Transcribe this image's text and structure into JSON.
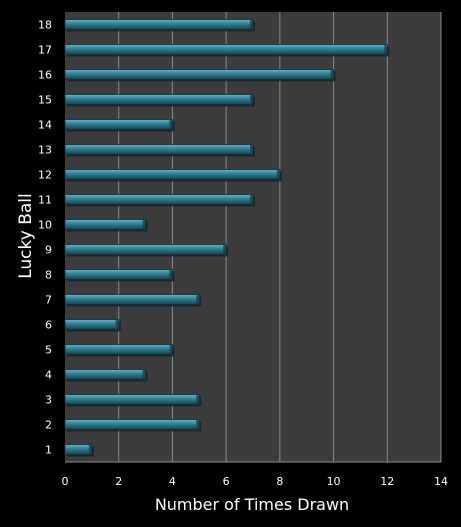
{
  "chart_data": {
    "type": "bar",
    "orientation": "horizontal",
    "title": "",
    "xlabel": "Number of Times Drawn",
    "ylabel": "Lucky Ball",
    "categories": [
      "1",
      "2",
      "3",
      "4",
      "5",
      "6",
      "7",
      "8",
      "9",
      "10",
      "11",
      "12",
      "13",
      "14",
      "15",
      "16",
      "17",
      "18"
    ],
    "values": [
      1,
      5,
      5,
      3,
      4,
      2,
      5,
      4,
      6,
      3,
      7,
      8,
      7,
      4,
      7,
      10,
      12,
      7
    ],
    "xlim": [
      0,
      14
    ],
    "xticks": [
      "0",
      "2",
      "4",
      "6",
      "8",
      "10",
      "12",
      "14"
    ],
    "grid": "vertical",
    "legend": "none",
    "colors": {
      "background": "#000000",
      "plot_background": "#3c3c3c",
      "bar_top": "#6ab3c7",
      "bar_mid": "#2f7f93",
      "bar_bottom": "#15414d",
      "grid": "#8a8a8a",
      "text": "#ffffff"
    }
  }
}
